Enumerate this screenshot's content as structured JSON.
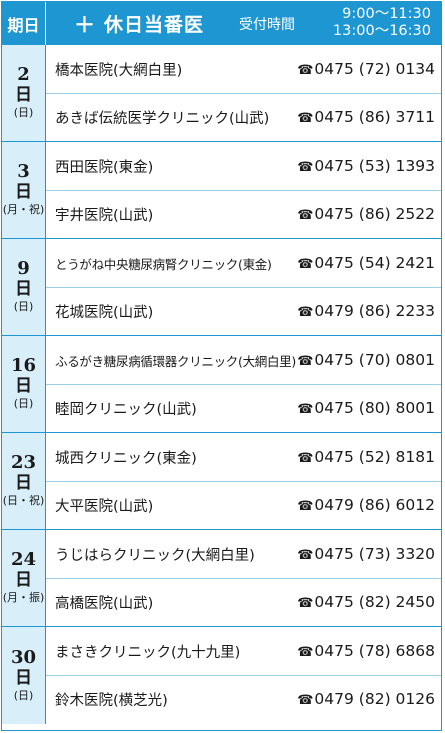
{
  "header": {
    "day_label": "期日",
    "title_plus": "＋",
    "title": "休日当番医",
    "reception_label": "受付時間",
    "hours_line1": "9:00〜11:30",
    "hours_line2": "13:00〜16:30"
  },
  "colors": {
    "accent": "#1e96d2",
    "day_cell_bg": "#d8eef8"
  },
  "phone_icon": "telephone-icon",
  "groups": [
    {
      "num": "2",
      "nichi": "日",
      "dow": "(日)",
      "clinics": [
        {
          "name": "橋本医院(大網白里)",
          "phone": "0475 (72) 0134"
        },
        {
          "name": "あきば伝統医学クリニック(山武)",
          "phone": "0475 (86) 3711"
        }
      ]
    },
    {
      "num": "3",
      "nichi": "日",
      "dow": "(月・祝)",
      "clinics": [
        {
          "name": "西田医院(東金)",
          "phone": "0475 (53) 1393"
        },
        {
          "name": "宇井医院(山武)",
          "phone": "0475 (86) 2522"
        }
      ]
    },
    {
      "num": "9",
      "nichi": "日",
      "dow": "(日)",
      "clinics": [
        {
          "name": "とうがね中央糖尿病腎クリニック(東金)",
          "phone": "0475 (54) 2421"
        },
        {
          "name": "花城医院(山武)",
          "phone": "0479 (86) 2233"
        }
      ]
    },
    {
      "num": "16",
      "nichi": "日",
      "dow": "(日)",
      "clinics": [
        {
          "name": "ふるがき糖尿病循環器クリニック(大網白里)",
          "phone": "0475 (70) 0801"
        },
        {
          "name": "睦岡クリニック(山武)",
          "phone": "0475 (80) 8001"
        }
      ]
    },
    {
      "num": "23",
      "nichi": "日",
      "dow": "(日・祝)",
      "clinics": [
        {
          "name": "城西クリニック(東金)",
          "phone": "0475 (52) 8181"
        },
        {
          "name": "大平医院(山武)",
          "phone": "0479 (86) 6012"
        }
      ]
    },
    {
      "num": "24",
      "nichi": "日",
      "dow": "(月・振)",
      "clinics": [
        {
          "name": "うじはらクリニック(大網白里)",
          "phone": "0475 (73) 3320"
        },
        {
          "name": "高橋医院(山武)",
          "phone": "0475 (82) 2450"
        }
      ]
    },
    {
      "num": "30",
      "nichi": "日",
      "dow": "(日)",
      "clinics": [
        {
          "name": "まさきクリニック(九十九里)",
          "phone": "0475 (78) 6868"
        },
        {
          "name": "鈴木医院(横芝光)",
          "phone": "0479 (82) 0126"
        }
      ]
    }
  ]
}
